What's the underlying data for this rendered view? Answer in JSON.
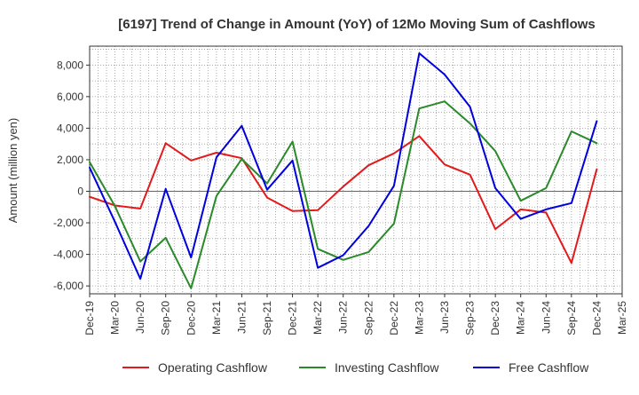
{
  "chart_data": {
    "type": "line",
    "title": "[6197]  Trend of Change in Amount (YoY) of 12Mo Moving Sum of Cashflows",
    "xlabel": "",
    "ylabel": "Amount (million yen)",
    "ylim": [
      -6500,
      9200
    ],
    "yticks": [
      -6000,
      -4000,
      -2000,
      0,
      2000,
      4000,
      6000,
      8000
    ],
    "ytick_labels": [
      "-6,000",
      "-4,000",
      "-2,000",
      "0",
      "2,000",
      "4,000",
      "6,000",
      "8,000"
    ],
    "categories": [
      "Dec-19",
      "Mar-20",
      "Jun-20",
      "Sep-20",
      "Dec-20",
      "Mar-21",
      "Jun-21",
      "Sep-21",
      "Dec-21",
      "Mar-22",
      "Jun-22",
      "Sep-22",
      "Dec-22",
      "Mar-23",
      "Jun-23",
      "Sep-23",
      "Dec-23",
      "Mar-24",
      "Jun-24",
      "Sep-24",
      "Dec-24",
      "Mar-25"
    ],
    "grid": true,
    "legend_position": "bottom",
    "series": [
      {
        "name": "Operating Cashflow",
        "color": "#e31a1c",
        "values": [
          -350,
          -900,
          -1100,
          3050,
          1950,
          2450,
          2100,
          -400,
          -1250,
          -1200,
          300,
          1650,
          2400,
          3500,
          1700,
          1050,
          -2400,
          -1150,
          -1350,
          -4550,
          1400,
          null
        ]
      },
      {
        "name": "Investing Cashflow",
        "color": "#2a8a2a",
        "values": [
          1850,
          -950,
          -4450,
          -2950,
          -6150,
          -300,
          2050,
          500,
          3150,
          -3650,
          -4350,
          -3850,
          -2050,
          5250,
          5700,
          4300,
          2550,
          -600,
          200,
          3800,
          3050,
          null
        ]
      },
      {
        "name": "Free Cashflow",
        "color": "#0000dd",
        "values": [
          1500,
          -1950,
          -5550,
          150,
          -4200,
          2150,
          4150,
          100,
          1950,
          -4850,
          -4050,
          -2200,
          350,
          8750,
          7400,
          5350,
          200,
          -1750,
          -1150,
          -750,
          4450,
          null
        ]
      }
    ]
  }
}
